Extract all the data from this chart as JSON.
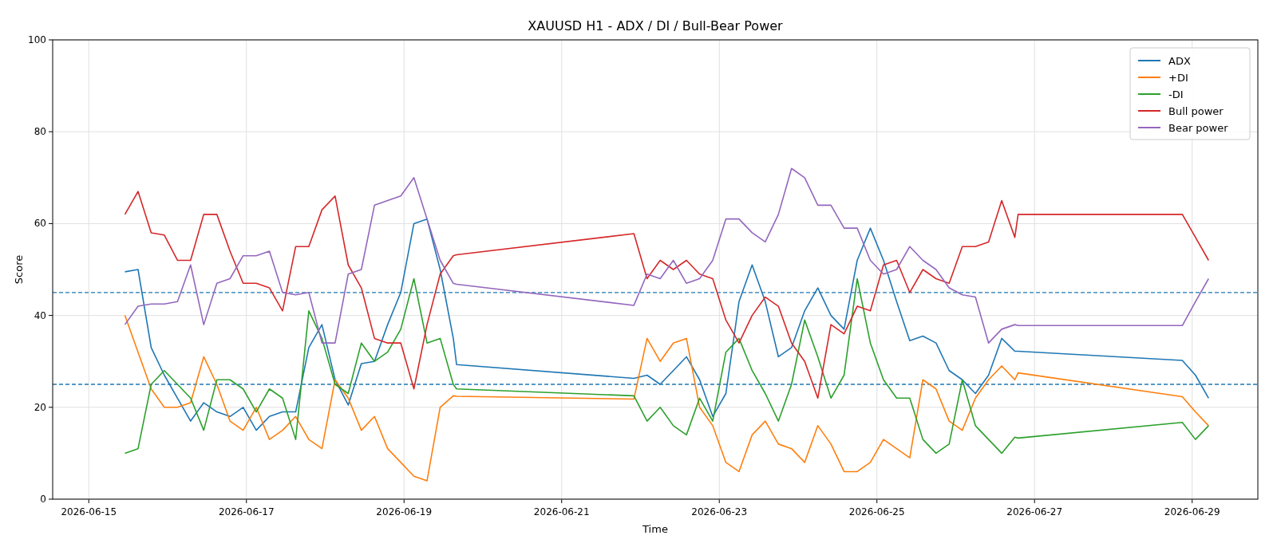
{
  "chart_data": {
    "type": "line",
    "title": "XAUUSD H1 - ADX / DI / Bull-Bear Power",
    "xlabel": "Time",
    "ylabel": "Score",
    "x": [
      "2026-06-15T11:00",
      "2026-06-15T15:00",
      "2026-06-15T19:00",
      "2026-06-15T23:00",
      "2026-06-16T03:00",
      "2026-06-16T07:00",
      "2026-06-16T11:00",
      "2026-06-16T15:00",
      "2026-06-16T19:00",
      "2026-06-16T23:00",
      "2026-06-17T03:00",
      "2026-06-17T07:00",
      "2026-06-17T11:00",
      "2026-06-17T15:00",
      "2026-06-17T19:00",
      "2026-06-17T23:00",
      "2026-06-18T03:00",
      "2026-06-18T07:00",
      "2026-06-18T11:00",
      "2026-06-18T15:00",
      "2026-06-18T19:00",
      "2026-06-18T23:00",
      "2026-06-19T03:00",
      "2026-06-19T07:00",
      "2026-06-19T11:00",
      "2026-06-19T15:00",
      "2026-06-19T16:00",
      "2026-06-21T22:00",
      "2026-06-22T02:00",
      "2026-06-22T06:00",
      "2026-06-22T10:00",
      "2026-06-22T14:00",
      "2026-06-22T18:00",
      "2026-06-22T22:00",
      "2026-06-23T02:00",
      "2026-06-23T06:00",
      "2026-06-23T10:00",
      "2026-06-23T14:00",
      "2026-06-23T18:00",
      "2026-06-23T22:00",
      "2026-06-24T02:00",
      "2026-06-24T06:00",
      "2026-06-24T10:00",
      "2026-06-24T14:00",
      "2026-06-24T18:00",
      "2026-06-24T22:00",
      "2026-06-25T02:00",
      "2026-06-25T06:00",
      "2026-06-25T10:00",
      "2026-06-25T14:00",
      "2026-06-25T18:00",
      "2026-06-25T22:00",
      "2026-06-26T02:00",
      "2026-06-26T06:00",
      "2026-06-26T10:00",
      "2026-06-26T14:00",
      "2026-06-26T18:00",
      "2026-06-26T19:00",
      "2026-06-28T21:00",
      "2026-06-29T01:00",
      "2026-06-29T05:00"
    ],
    "series": [
      {
        "name": "ADX",
        "color": "#1f77b4",
        "values": [
          49.5,
          50,
          33,
          27,
          22,
          17,
          21,
          19,
          18,
          20,
          15,
          18,
          19,
          19,
          33,
          38,
          26,
          20.5,
          29.5,
          30,
          38,
          45,
          60,
          61,
          50,
          35,
          29.3,
          26.3,
          27,
          25,
          28,
          31,
          26,
          18,
          23,
          43,
          51,
          43,
          31,
          33,
          41,
          46,
          40,
          37,
          52,
          59,
          52,
          43,
          34.5,
          35.5,
          34,
          28,
          26,
          23,
          27,
          35,
          32.2,
          32.2,
          30.2,
          27,
          22
        ]
      },
      {
        "name": "+DI",
        "color": "#ff7f0e",
        "values": [
          40,
          32,
          24,
          20,
          20,
          21,
          31,
          25,
          17,
          15,
          20,
          13,
          15,
          18,
          13,
          11,
          26,
          22,
          15,
          18,
          11,
          8,
          5,
          4,
          20,
          22.5,
          22.4,
          21.8,
          35,
          30,
          34,
          35,
          20,
          16,
          8,
          6,
          14,
          17,
          12,
          11,
          8,
          16,
          12,
          6,
          6,
          8,
          13,
          11,
          9,
          26,
          24,
          17,
          15,
          22,
          26,
          29,
          26,
          27.5,
          22.3,
          19,
          16
        ]
      },
      {
        "name": "-DI",
        "color": "#2ca02c",
        "values": [
          10,
          11,
          25,
          28,
          25,
          22,
          15,
          26,
          26,
          24,
          19,
          24,
          22,
          13,
          41,
          35,
          25,
          23,
          34,
          30,
          32,
          37,
          48,
          34,
          35,
          25,
          24,
          22.5,
          17,
          20,
          16,
          14,
          22,
          17,
          32,
          35,
          28,
          23,
          17,
          25,
          39,
          31,
          22,
          27,
          48,
          34,
          26,
          22,
          22,
          13,
          10,
          12,
          26,
          16,
          13,
          10,
          13.5,
          13.3,
          16.7,
          13,
          16
        ]
      },
      {
        "name": "Bull power",
        "color": "#d62728",
        "values": [
          62,
          67,
          58,
          57.5,
          52,
          52,
          62,
          62,
          54,
          47,
          47,
          46,
          41,
          55,
          55,
          63,
          66,
          51,
          46,
          35,
          34,
          34,
          24,
          38,
          49,
          53,
          53.2,
          57.8,
          48,
          52,
          50,
          52,
          49,
          48,
          39,
          34,
          40,
          44,
          42,
          34,
          30,
          22,
          38,
          36,
          42,
          41,
          51,
          52,
          45,
          50,
          48,
          47,
          55,
          55,
          56,
          65,
          57,
          62,
          62,
          57,
          52
        ]
      },
      {
        "name": "Bear power",
        "color": "#9467bd",
        "values": [
          38,
          42,
          42.5,
          42.5,
          43,
          51,
          38,
          47,
          48,
          53,
          53,
          54,
          45,
          44.5,
          45,
          34,
          34,
          49,
          50,
          64,
          65,
          66,
          70,
          61,
          52,
          47,
          46.8,
          42.2,
          49,
          48,
          52,
          47,
          48,
          52,
          61,
          61,
          58,
          56,
          62,
          72,
          70,
          64,
          64,
          59,
          59,
          52,
          49,
          50,
          55,
          52,
          50,
          46,
          44.5,
          44,
          34,
          37,
          38,
          37.8,
          37.8,
          43,
          48
        ]
      }
    ],
    "xlim": [
      "2026-06-14T13:00",
      "2026-06-29T20:00"
    ],
    "xticks": [
      "2026-06-15",
      "2026-06-17",
      "2026-06-19",
      "2026-06-21",
      "2026-06-23",
      "2026-06-25",
      "2026-06-27",
      "2026-06-29"
    ],
    "ylim": [
      0,
      100
    ],
    "yticks": [
      0,
      20,
      40,
      60,
      80,
      100
    ],
    "ref_lines": [
      {
        "axis": "y",
        "value": 45,
        "color": "#1f77b4",
        "line_style": "dashed"
      },
      {
        "axis": "y",
        "value": 25,
        "color": "#1f77b4",
        "line_style": "dashed"
      }
    ],
    "grid": true,
    "legend": "top right"
  }
}
